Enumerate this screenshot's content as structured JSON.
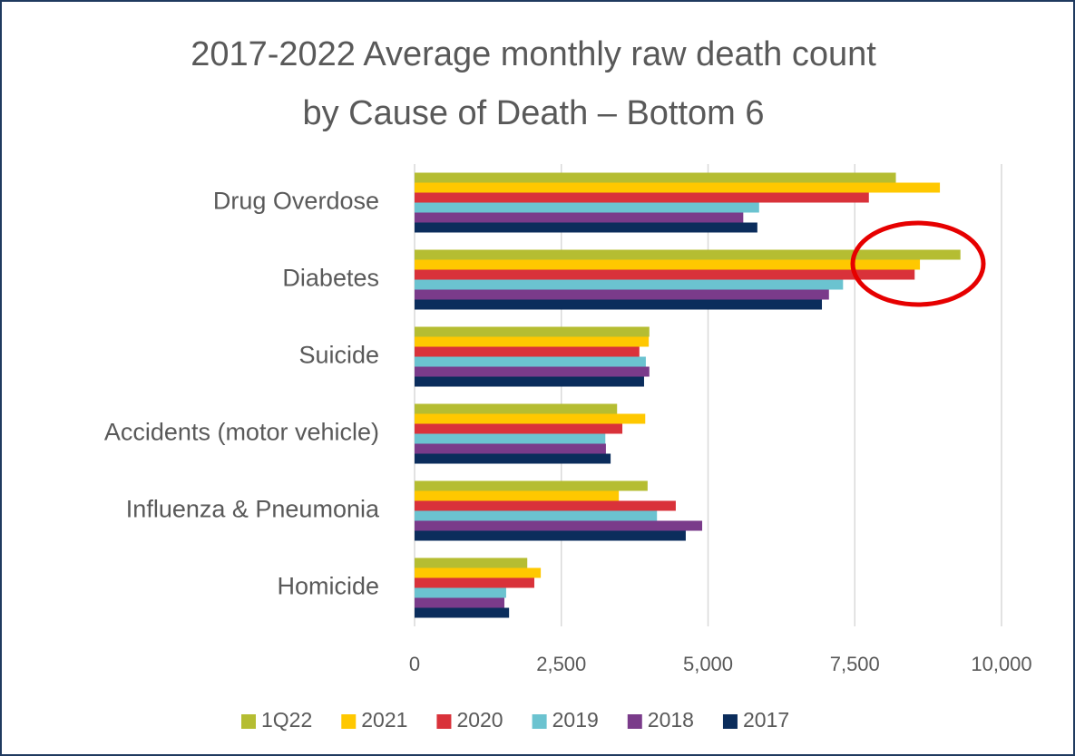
{
  "chart_data": {
    "type": "bar",
    "orientation": "horizontal",
    "title": [
      "2017-2022 Average monthly raw death count",
      "by Cause of Death – Bottom 6"
    ],
    "categories": [
      "Drug Overdose",
      "Diabetes",
      "Suicide",
      "Accidents (motor vehicle)",
      "Influenza & Pneumonia",
      "Homicide"
    ],
    "series": [
      {
        "name": "1Q22",
        "color": "#b5bd32",
        "values": [
          8200,
          9300,
          4000,
          3450,
          3970,
          1920
        ]
      },
      {
        "name": "2021",
        "color": "#ffc800",
        "values": [
          8950,
          8610,
          3990,
          3930,
          3480,
          2150
        ]
      },
      {
        "name": "2020",
        "color": "#d9323a",
        "values": [
          7740,
          8520,
          3830,
          3540,
          4450,
          2040
        ]
      },
      {
        "name": "2019",
        "color": "#6bc3d0",
        "values": [
          5870,
          7300,
          3940,
          3250,
          4130,
          1560
        ]
      },
      {
        "name": "2018",
        "color": "#7a3b8a",
        "values": [
          5600,
          7060,
          4000,
          3260,
          4900,
          1530
        ]
      },
      {
        "name": "2017",
        "color": "#0b2d5c",
        "values": [
          5840,
          6940,
          3910,
          3340,
          4620,
          1610
        ]
      }
    ],
    "xlim": [
      0,
      10000
    ],
    "xticks": [
      0,
      {
        "value": 2500,
        "label": "2,500"
      },
      {
        "value": 5000,
        "label": "5,000"
      },
      {
        "value": 7500,
        "label": "7,500"
      },
      {
        "value": 10000,
        "label": "10,000"
      }
    ],
    "grid": true,
    "legend": "bottom"
  }
}
